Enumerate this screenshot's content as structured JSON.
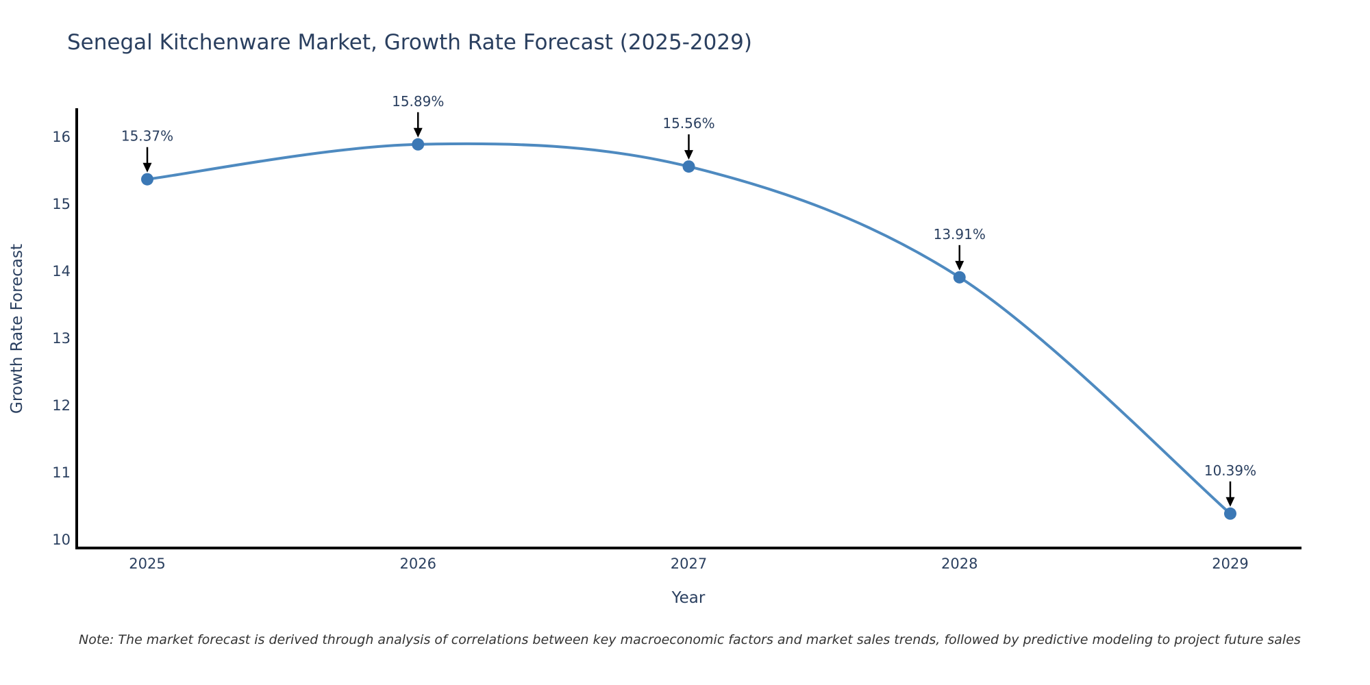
{
  "title": "Senegal Kitchenware Market, Growth Rate Forecast (2025-2029)",
  "note": "Note: The market forecast is derived through analysis of correlations between key macroeconomic factors and market sales trends, followed by predictive modeling to project future sales",
  "chart_data": {
    "type": "line",
    "title": "Senegal Kitchenware Market, Growth Rate Forecast (2025-2029)",
    "xlabel": "Year",
    "ylabel": "Growth Rate Forecast",
    "categories": [
      "2025",
      "2026",
      "2027",
      "2028",
      "2029"
    ],
    "values": [
      15.37,
      15.89,
      15.56,
      13.91,
      10.39
    ],
    "point_labels": [
      "15.37%",
      "15.89%",
      "15.56%",
      "13.91%",
      "10.39%"
    ],
    "yticks": [
      10,
      11,
      12,
      13,
      14,
      15,
      16
    ],
    "ylim": [
      9.88,
      16.41
    ],
    "grid": false,
    "legend_position": "none",
    "line_shape": "spline",
    "marker": "circle",
    "colors": {
      "line": "#4e8ac0",
      "marker": "#3b78b5",
      "axis": "#000000",
      "text": "#2a3f5f",
      "annotation_arrow": "#000000",
      "note_text": "#333333",
      "background": "#ffffff"
    }
  }
}
